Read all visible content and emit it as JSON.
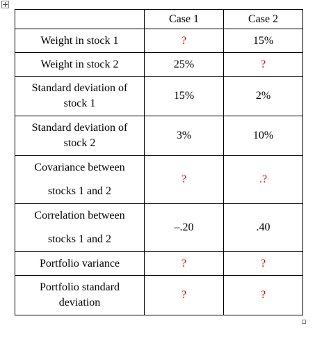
{
  "table": {
    "headers": [
      "",
      "Case 1",
      "Case 2"
    ],
    "rows": [
      {
        "label": [
          "Weight in stock 1"
        ],
        "case1": "?",
        "case2": "15%"
      },
      {
        "label": [
          "Weight in stock 2"
        ],
        "case1": "25%",
        "case2": "?"
      },
      {
        "label": [
          "Standard deviation of",
          "stock 1"
        ],
        "case1": "15%",
        "case2": "2%"
      },
      {
        "label": [
          "Standard deviation of",
          "stock 2"
        ],
        "case1": "3%",
        "case2": "10%"
      },
      {
        "label": [
          "Covariance between",
          "stocks 1 and 2"
        ],
        "case1": "?",
        "case2": ".?"
      },
      {
        "label": [
          "Correlation between",
          "stocks 1 and 2"
        ],
        "case1": "–.20",
        "case2": ".40"
      },
      {
        "label": [
          "Portfolio variance"
        ],
        "case1": "?",
        "case2": "?"
      },
      {
        "label": [
          "Portfolio standard",
          "deviation"
        ],
        "case1": "?",
        "case2": "?"
      }
    ]
  },
  "colors": {
    "question_mark": "#e00000",
    "text": "#000000",
    "border": "#000000"
  }
}
